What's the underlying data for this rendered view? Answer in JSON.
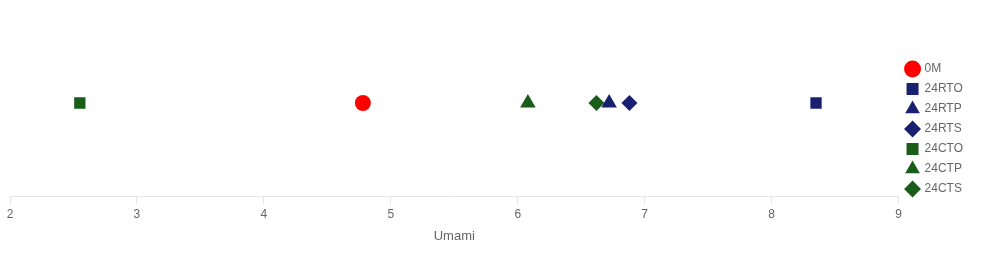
{
  "chart_data": {
    "type": "scatter",
    "x_label": "Umami",
    "xlim": [
      2,
      9
    ],
    "xticks": [
      2,
      3,
      4,
      5,
      6,
      7,
      8,
      9
    ],
    "grid": false,
    "legend": "right",
    "tick_labels": "x",
    "series": [
      {
        "name": "0M",
        "x": [
          4.78
        ],
        "color": "#ff0000",
        "marker": "circle"
      },
      {
        "name": "24RTO",
        "x": [
          8.35
        ],
        "color": "#1a2070",
        "marker": "square"
      },
      {
        "name": "24RTP",
        "x": [
          6.72
        ],
        "color": "#1a2070",
        "marker": "triangle"
      },
      {
        "name": "24RTS",
        "x": [
          6.88
        ],
        "color": "#1a2070",
        "marker": "diamond"
      },
      {
        "name": "24CTO",
        "x": [
          2.55
        ],
        "color": "#1a5c1a",
        "marker": "square"
      },
      {
        "name": "24CTP",
        "x": [
          6.08
        ],
        "color": "#1a5c1a",
        "marker": "triangle"
      },
      {
        "name": "24CTS",
        "x": [
          6.62
        ],
        "color": "#1a5c1a",
        "marker": "diamond"
      }
    ]
  }
}
